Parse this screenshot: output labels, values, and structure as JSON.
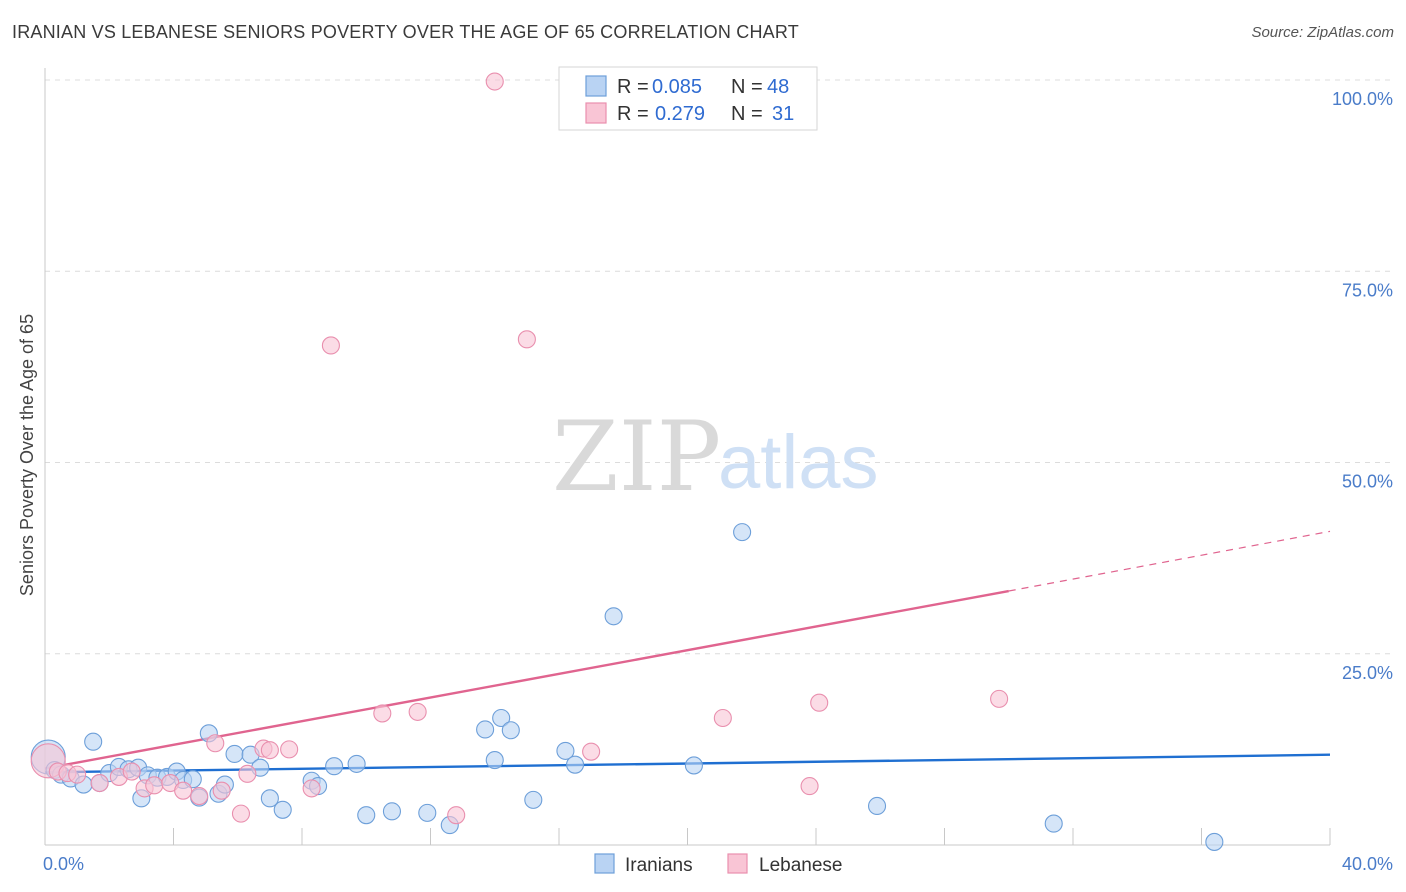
{
  "title": "IRANIAN VS LEBANESE SENIORS POVERTY OVER THE AGE OF 65 CORRELATION CHART",
  "source": "Source: ZipAtlas.com",
  "watermark": {
    "part1": "ZIP",
    "part2": "atlas"
  },
  "colors": {
    "iranians_fill": "#b9d3f3",
    "iranians_stroke": "#6d9fd9",
    "iranians_line": "#1f6fd1",
    "lebanese_fill": "#f9c5d5",
    "lebanese_stroke": "#e98fae",
    "lebanese_line": "#e0648f",
    "grid": "#dcdcdc",
    "tick_text": "#4a7cc9"
  },
  "legend": {
    "rows": [
      {
        "r_label": "R =",
        "r_value": "0.085",
        "n_label": "N =",
        "n_value": "48"
      },
      {
        "r_label": "R =",
        "r_value": "0.279",
        "n_label": "N =",
        "n_value": "31"
      }
    ]
  },
  "chart_data": {
    "type": "scatter",
    "title": "IRANIAN VS LEBANESE SENIORS POVERTY OVER THE AGE OF 65 CORRELATION CHART",
    "xlabel": "",
    "ylabel": "Seniors Poverty Over the Age of 65",
    "xlim": [
      0,
      40
    ],
    "ylim": [
      0,
      100
    ],
    "x_tick_labels": [
      "0.0%",
      "40.0%"
    ],
    "y_ticks": [
      25,
      50,
      75,
      100
    ],
    "y_tick_labels": [
      "25.0%",
      "50.0%",
      "75.0%",
      "100.0%"
    ],
    "legend_position": "top-center",
    "series": [
      {
        "name": "Iranians",
        "r": 0.085,
        "n": 48,
        "trend": {
          "x0": 0,
          "y0": 9.5,
          "x1": 40,
          "y1": 11.8
        },
        "points": [
          [
            0.1,
            11.5
          ],
          [
            0.3,
            9.8
          ],
          [
            0.5,
            9.2
          ],
          [
            0.8,
            8.7
          ],
          [
            1.2,
            7.9
          ],
          [
            1.5,
            13.5
          ],
          [
            1.7,
            8.1
          ],
          [
            2.0,
            9.4
          ],
          [
            2.3,
            10.2
          ],
          [
            2.6,
            9.9
          ],
          [
            2.9,
            10.1
          ],
          [
            3.0,
            6.1
          ],
          [
            3.2,
            9.1
          ],
          [
            3.5,
            8.8
          ],
          [
            3.8,
            8.9
          ],
          [
            4.1,
            9.6
          ],
          [
            4.3,
            8.5
          ],
          [
            4.6,
            8.6
          ],
          [
            4.8,
            6.2
          ],
          [
            5.1,
            14.6
          ],
          [
            5.4,
            6.7
          ],
          [
            5.6,
            7.9
          ],
          [
            5.9,
            11.9
          ],
          [
            6.4,
            11.8
          ],
          [
            6.7,
            10.1
          ],
          [
            7.0,
            6.1
          ],
          [
            7.4,
            4.6
          ],
          [
            8.3,
            8.4
          ],
          [
            8.5,
            7.7
          ],
          [
            9.0,
            10.3
          ],
          [
            9.7,
            10.6
          ],
          [
            10.0,
            3.9
          ],
          [
            10.8,
            4.4
          ],
          [
            11.9,
            4.2
          ],
          [
            12.6,
            2.6
          ],
          [
            13.7,
            15.1
          ],
          [
            14.0,
            11.1
          ],
          [
            14.2,
            16.6
          ],
          [
            14.5,
            15.0
          ],
          [
            15.2,
            5.9
          ],
          [
            16.2,
            12.3
          ],
          [
            16.5,
            10.5
          ],
          [
            17.7,
            29.9
          ],
          [
            20.2,
            10.4
          ],
          [
            21.7,
            40.9
          ],
          [
            25.9,
            5.1
          ],
          [
            31.4,
            2.8
          ],
          [
            36.4,
            0.4
          ]
        ]
      },
      {
        "name": "Lebanese",
        "r": 0.279,
        "n": 31,
        "trend": {
          "x0": 0,
          "y0": 10.0,
          "x1": 30,
          "y1": 33.2,
          "dash_to_x": 40,
          "dash_to_y": 41.0
        },
        "points": [
          [
            0.1,
            11.0
          ],
          [
            0.4,
            9.6
          ],
          [
            0.7,
            9.4
          ],
          [
            1.0,
            9.2
          ],
          [
            1.7,
            8.1
          ],
          [
            2.3,
            8.9
          ],
          [
            2.7,
            9.6
          ],
          [
            3.1,
            7.4
          ],
          [
            3.4,
            7.8
          ],
          [
            3.9,
            8.1
          ],
          [
            4.3,
            7.1
          ],
          [
            4.8,
            6.4
          ],
          [
            5.3,
            13.3
          ],
          [
            5.5,
            7.1
          ],
          [
            6.1,
            4.1
          ],
          [
            6.3,
            9.3
          ],
          [
            6.8,
            12.6
          ],
          [
            7.0,
            12.4
          ],
          [
            7.6,
            12.5
          ],
          [
            8.3,
            7.4
          ],
          [
            8.9,
            65.3
          ],
          [
            10.5,
            17.2
          ],
          [
            11.6,
            17.4
          ],
          [
            12.8,
            3.9
          ],
          [
            14.0,
            99.8
          ],
          [
            15.0,
            66.1
          ],
          [
            17.0,
            12.2
          ],
          [
            21.1,
            16.6
          ],
          [
            23.8,
            7.7
          ],
          [
            24.1,
            18.6
          ],
          [
            29.7,
            19.1
          ]
        ]
      }
    ]
  }
}
